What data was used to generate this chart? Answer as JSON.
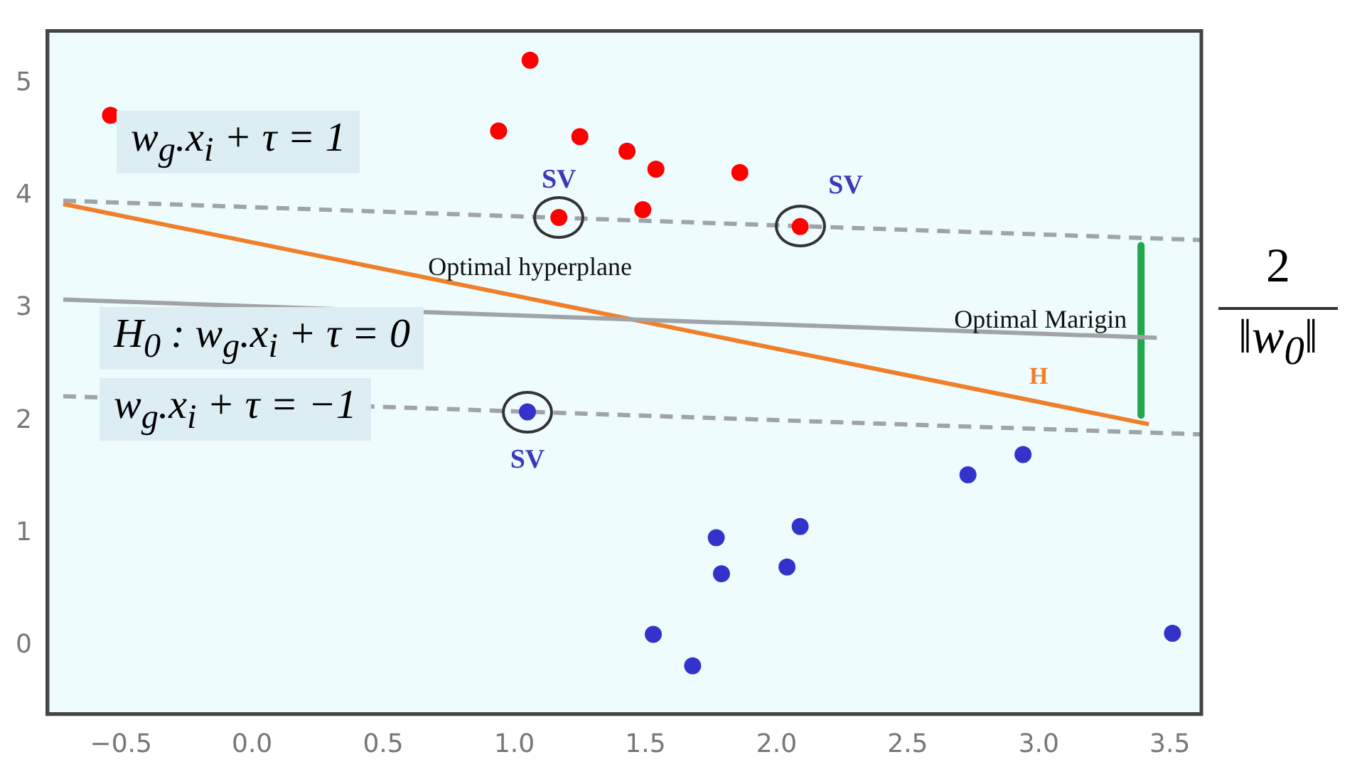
{
  "chart_data": {
    "type": "scatter",
    "xlim": [
      -0.78,
      3.62
    ],
    "ylim": [
      -0.61,
      5.47
    ],
    "xticks": [
      {
        "value": -0.5,
        "label": "−0.5"
      },
      {
        "value": 0,
        "label": "0.0"
      },
      {
        "value": 0.5,
        "label": "0.5"
      },
      {
        "value": 1,
        "label": "1.0"
      },
      {
        "value": 1.5,
        "label": "1.5"
      },
      {
        "value": 2,
        "label": "2.0"
      },
      {
        "value": 2.5,
        "label": "2.5"
      },
      {
        "value": 3,
        "label": "3.0"
      },
      {
        "value": 3.5,
        "label": "3.5"
      }
    ],
    "yticks": [
      0,
      1,
      2,
      3,
      4,
      5
    ],
    "grid": false,
    "series": [
      {
        "type": "scatter",
        "color": "#ff0000",
        "marker": "circle",
        "x": [
          -0.54,
          1.06,
          0.94,
          1.25,
          1.43,
          1.54,
          1.49,
          1.86,
          1.17,
          2.09
        ],
        "values": [
          4.72,
          5.21,
          4.58,
          4.53,
          4.4,
          4.24,
          3.88,
          4.21,
          3.81,
          3.73
        ]
      },
      {
        "type": "scatter",
        "color": "#3333cc",
        "marker": "circle",
        "x": [
          1.05,
          1.53,
          1.68,
          1.77,
          1.79,
          2.04,
          2.09,
          2.73,
          2.94,
          3.51
        ],
        "values": [
          2.08,
          0.1,
          -0.18,
          0.96,
          0.64,
          0.7,
          1.06,
          1.52,
          1.7,
          0.11
        ]
      },
      {
        "type": "line",
        "color": "#a0a4a8",
        "line_style": "dashed",
        "marker": "none",
        "x": [
          -0.72,
          3.62
        ],
        "values": [
          3.96,
          3.61
        ]
      },
      {
        "type": "line",
        "color": "#a0a4a8",
        "line_style": "solid",
        "marker": "none",
        "x": [
          -0.72,
          3.45
        ],
        "values": [
          3.08,
          2.74
        ]
      },
      {
        "type": "line",
        "color": "#a0a4a8",
        "line_style": "dashed",
        "marker": "none",
        "x": [
          -0.72,
          3.62
        ],
        "values": [
          2.22,
          1.88
        ]
      },
      {
        "type": "line",
        "color": "#f07f2a",
        "line_style": "solid",
        "marker": "none",
        "x": [
          -0.72,
          3.42
        ],
        "values": [
          3.93,
          1.97
        ]
      },
      {
        "type": "line",
        "color": "#22a94b",
        "line_style": "solid",
        "marker": "none",
        "x": [
          3.39,
          3.39
        ],
        "values": [
          3.56,
          2.05
        ]
      }
    ],
    "annotations": [
      {
        "text": "SV",
        "x": 1.17,
        "y": 3.81
      },
      {
        "text": "SV",
        "x": 2.09,
        "y": 3.73
      },
      {
        "text": "SV",
        "x": 1.05,
        "y": 2.08
      },
      {
        "text": "H",
        "x": 3.0,
        "y": 2.17
      },
      {
        "text": "Optimal hyperplane",
        "x": 1.06,
        "y": 2.94
      },
      {
        "text": "Optimal Marigin",
        "x": 3.39,
        "y": 2.8
      },
      "w$_{g}$.x$_{i}$ + τ = 1",
      "H$_{0}$ : w$_{g}$.x$_{i}$ + τ = 0",
      "w$_{g}$.x$_{i}$ + τ = −1",
      "2",
      "‖w$_{0}$‖"
    ]
  }
}
